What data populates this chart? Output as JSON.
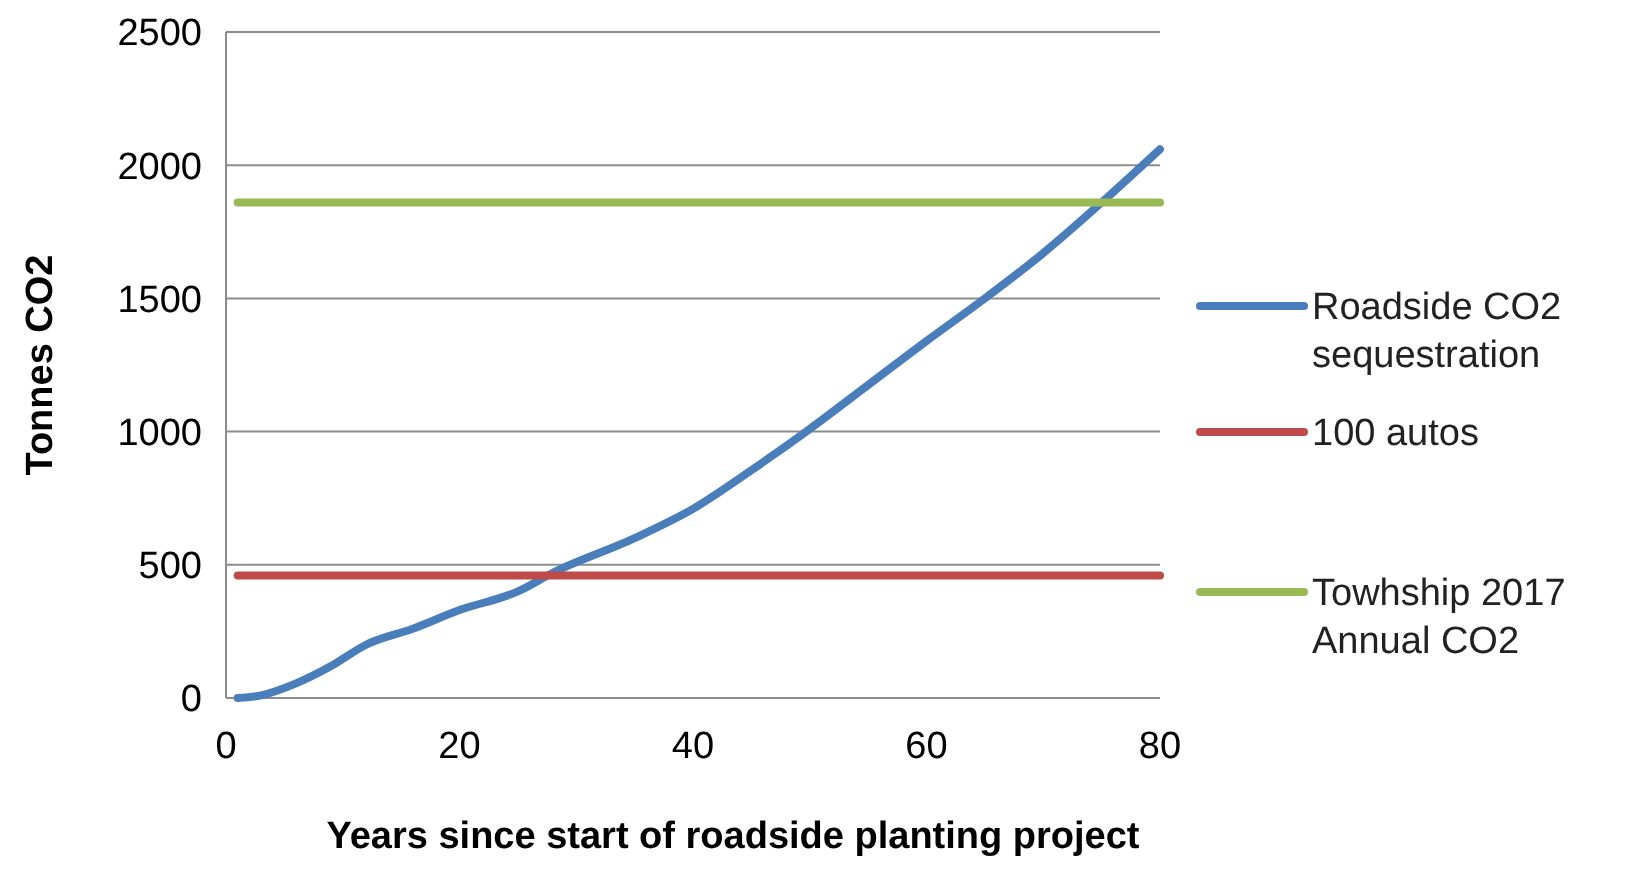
{
  "chart_data": {
    "type": "line",
    "xlabel": "Years since start of roadside planting project",
    "ylabel": "Tonnes CO2",
    "xlim": [
      0,
      80
    ],
    "xticks": [
      0,
      20,
      40,
      60,
      80
    ],
    "ylim": [
      0,
      2500
    ],
    "yticks": [
      0,
      500,
      1000,
      1500,
      2000,
      2500
    ],
    "grid": "y",
    "legend": "right",
    "marker": "none",
    "line_style": "solid",
    "series": [
      {
        "name": "Roadside CO2 sequestration",
        "color": "#4a7ebb",
        "x": [
          1,
          3,
          6,
          9,
          12,
          16,
          20,
          25,
          28,
          35,
          40,
          45,
          50,
          55,
          60,
          65,
          70,
          75,
          80
        ],
        "values": [
          0,
          10,
          55,
          120,
          200,
          260,
          330,
          400,
          470,
          600,
          710,
          855,
          1010,
          1175,
          1340,
          1500,
          1670,
          1860,
          2060
        ]
      },
      {
        "name": "100 autos",
        "color": "#be4b48",
        "x": [
          1,
          80
        ],
        "values": [
          460,
          460
        ]
      },
      {
        "name": "Towhship 2017 Annual CO2",
        "color": "#98b954",
        "x": [
          1,
          80
        ],
        "values": [
          1860,
          1860
        ]
      }
    ]
  }
}
